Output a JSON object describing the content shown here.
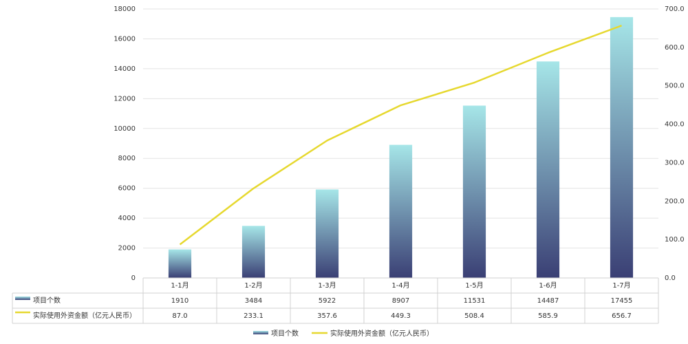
{
  "chart_data": {
    "type": "bar-line",
    "categories": [
      "1-1月",
      "1-2月",
      "1-3月",
      "1-4月",
      "1-5月",
      "1-6月",
      "1-7月"
    ],
    "series": [
      {
        "name": "项目个数",
        "type": "bar",
        "color": "#3a3f74",
        "gradient": [
          "#a6e6e8",
          "#3a3f74"
        ],
        "values": [
          1910,
          3484,
          5922,
          8907,
          11531,
          14487,
          17455
        ]
      },
      {
        "name": "实际使用外资金额（亿元人民币）",
        "type": "line",
        "axis": "y2",
        "color": "#e6d82e",
        "values": [
          87.0,
          233.1,
          357.6,
          449.3,
          508.4,
          585.9,
          656.7
        ],
        "value_labels": [
          "87.0",
          "233.1",
          "357.6",
          "449.3",
          "508.4",
          "585.9",
          "656.7"
        ]
      }
    ],
    "ylim": [
      0,
      18000
    ],
    "yticks": [
      0,
      2000,
      4000,
      6000,
      8000,
      10000,
      12000,
      14000,
      16000,
      18000
    ],
    "y2lim": [
      0,
      700
    ],
    "y2ticks": [
      {
        "value": 0,
        "label": "0.0"
      },
      {
        "value": 100,
        "label": "100.0"
      },
      {
        "value": 200,
        "label": "200.0"
      },
      {
        "value": 300,
        "label": "300.0"
      },
      {
        "value": 400,
        "label": "400.0"
      },
      {
        "value": 500,
        "label": "500.0"
      },
      {
        "value": 600,
        "label": "600.0"
      },
      {
        "value": 700,
        "label": "700.0"
      }
    ],
    "grid": true,
    "data_table": true,
    "legend": "bottom"
  }
}
